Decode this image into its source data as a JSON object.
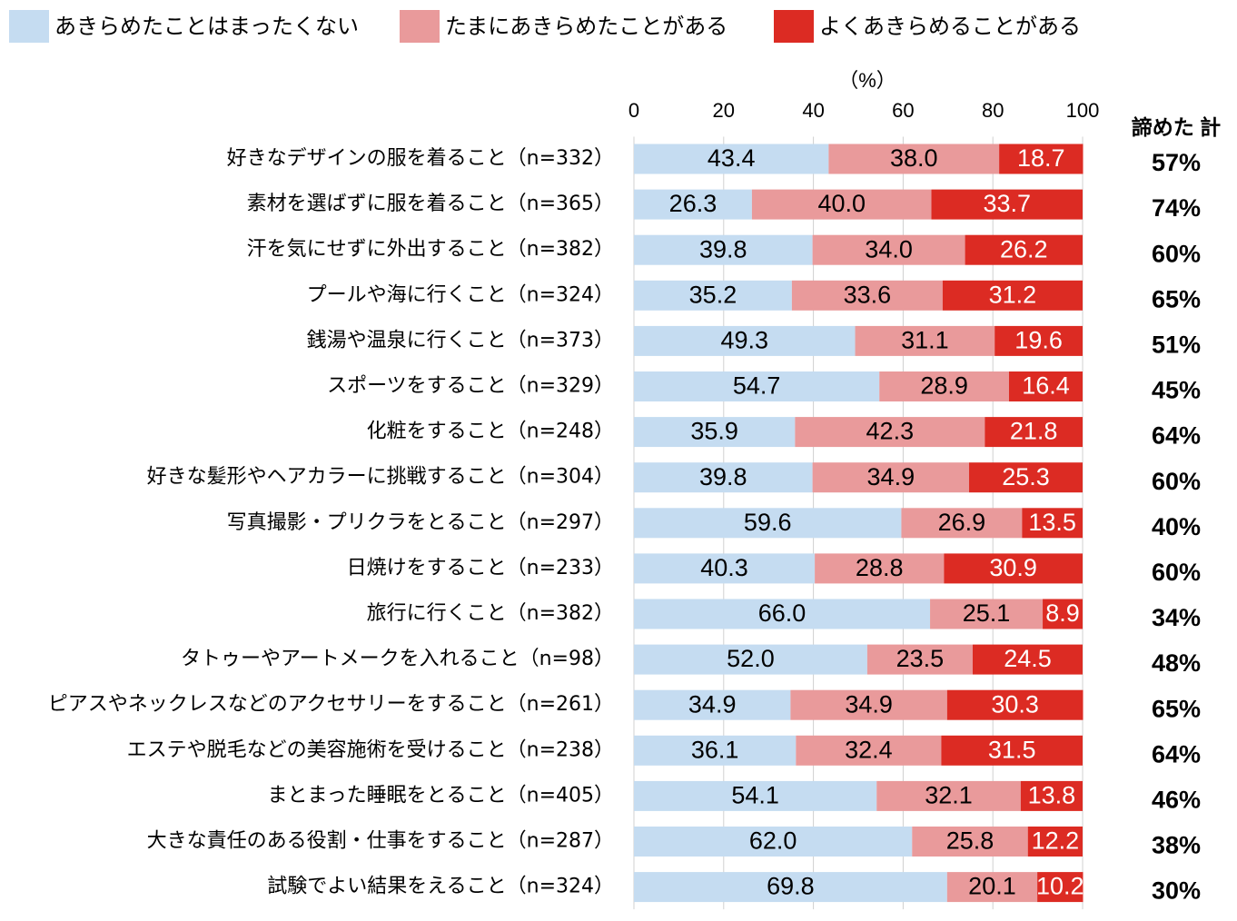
{
  "chart_data": {
    "type": "stacked-barh",
    "unit": "（%）",
    "categories": [
      "好きなデザインの服を着ること（n=332）",
      "素材を選ばずに服を着ること（n=365）",
      "汗を気にせずに外出すること（n=382）",
      "プールや海に行くこと（n=324）",
      "銭湯や温泉に行くこと（n=373）",
      "スポーツをすること（n=329）",
      "化粧をすること（n=248）",
      "好きな髪形やヘアカラーに挑戦すること（n=304）",
      "写真撮影・プリクラをとること（n=297）",
      "日焼けをすること（n=233）",
      "旅行に行くこと（n=382）",
      "タトゥーやアートメークを入れること（n=98）",
      "ピアスやネックレスなどのアクセサリーをすること（n=261）",
      "エステや脱毛などの美容施術を受けること（n=238）",
      "まとまった睡眠をとること（n=405）",
      "大きな責任のある役割・仕事をすること（n=287）",
      "試験でよい結果をえること（n=324）"
    ],
    "series": [
      {
        "name": "あきらめたことはまったくない",
        "color": "#c5dcf1",
        "label_color": "#000000",
        "values": [
          43.4,
          26.3,
          39.8,
          35.2,
          49.3,
          54.7,
          35.9,
          39.8,
          59.6,
          40.3,
          66.0,
          52.0,
          34.9,
          36.1,
          54.1,
          62.0,
          69.8
        ],
        "value_labels": [
          "43.4",
          "26.3",
          "39.8",
          "35.2",
          "49.3",
          "54.7",
          "35.9",
          "39.8",
          "59.6",
          "40.3",
          "66.0",
          "52.0",
          "34.9",
          "36.1",
          "54.1",
          "62.0",
          "69.8"
        ]
      },
      {
        "name": "たまにあきらめたことがある",
        "color": "#e99a9b",
        "label_color": "#000000",
        "values": [
          38.0,
          40.0,
          34.0,
          33.6,
          31.1,
          28.9,
          42.3,
          34.9,
          26.9,
          28.8,
          25.1,
          23.5,
          34.9,
          32.4,
          32.1,
          25.8,
          20.1
        ],
        "value_labels": [
          "38.0",
          "40.0",
          "34.0",
          "33.6",
          "31.1",
          "28.9",
          "42.3",
          "34.9",
          "26.9",
          "28.8",
          "25.1",
          "23.5",
          "34.9",
          "32.4",
          "32.1",
          "25.8",
          "20.1"
        ]
      },
      {
        "name": "よくあきらめることがある",
        "color": "#dc2b23",
        "label_color": "#ffffff",
        "values": [
          18.7,
          33.7,
          26.2,
          31.2,
          19.6,
          16.4,
          21.8,
          25.3,
          13.5,
          30.9,
          8.9,
          24.5,
          30.3,
          31.5,
          13.8,
          12.2,
          10.2
        ],
        "value_labels": [
          "18.7",
          "33.7",
          "26.2",
          "31.2",
          "19.6",
          "16.4",
          "21.8",
          "25.3",
          "13.5",
          "30.9",
          "8.9",
          "24.5",
          "30.3",
          "31.5",
          "13.8",
          "12.2",
          "10.2"
        ]
      }
    ],
    "totals": {
      "title": "諦めた 計",
      "values": [
        57,
        74,
        60,
        65,
        51,
        45,
        64,
        60,
        40,
        60,
        34,
        48,
        65,
        64,
        46,
        38,
        30
      ],
      "value_labels": [
        "57%",
        "74%",
        "60%",
        "65%",
        "51%",
        "45%",
        "64%",
        "60%",
        "40%",
        "60%",
        "34%",
        "48%",
        "65%",
        "64%",
        "46%",
        "38%",
        "30%"
      ]
    },
    "xlim": [
      0,
      100
    ],
    "xticks": [
      0,
      20,
      40,
      60,
      80,
      100
    ],
    "grid": true
  }
}
